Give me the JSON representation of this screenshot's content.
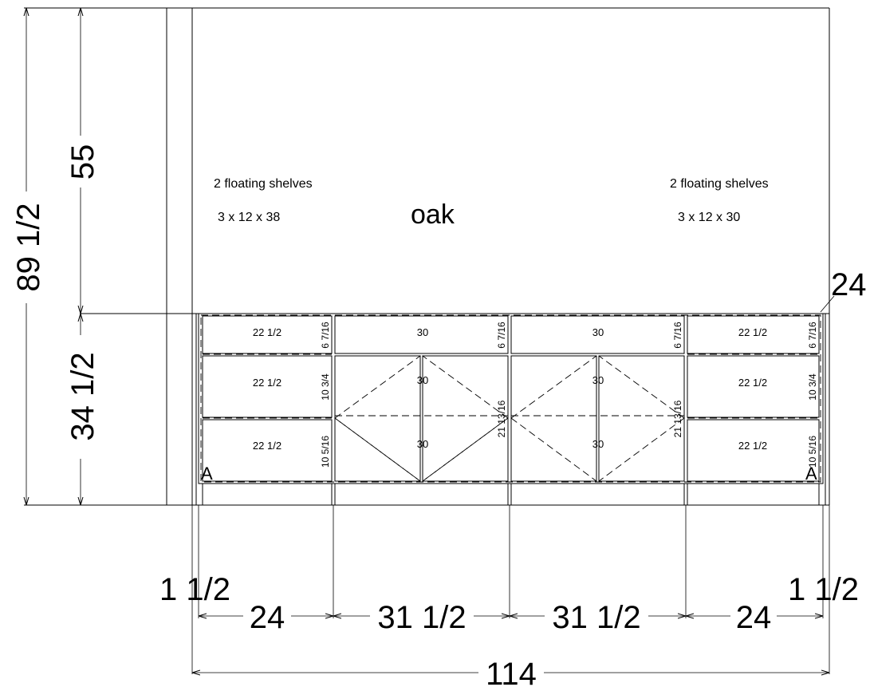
{
  "notes": {
    "left_shelves_title": "2 floating shelves",
    "left_shelves_size": "3 x 12 x 38",
    "material": "oak",
    "right_shelves_title": "2 floating shelves",
    "right_shelves_size": "3 x 12 x 30"
  },
  "dimensions": {
    "total_height": "89 1/2",
    "upper_height": "55",
    "cabinet_height": "34 1/2",
    "depth_callout": "24",
    "left_filler": "1 1/2",
    "right_filler": "1 1/2",
    "seg_1": "24",
    "seg_2": "31 1/2",
    "seg_3": "31 1/2",
    "seg_4": "24",
    "total_width": "114"
  },
  "cabinets": {
    "c1": {
      "drawer_1_width": "22 1/2",
      "drawer_1_height": "6 7/16",
      "drawer_2_width": "22 1/2",
      "drawer_2_height": "10 3/4",
      "drawer_3_width": "22 1/2",
      "drawer_3_height": "10 5/16",
      "section_mark": "A"
    },
    "c2": {
      "drawer_width": "30",
      "drawer_height": "6 7/16",
      "door_width_upper": "30",
      "door_width_lower": "30",
      "door_height": "21 13/16"
    },
    "c3": {
      "drawer_width": "30",
      "drawer_height": "6 7/16",
      "door_width_upper": "30",
      "door_width_lower": "30",
      "door_height": "21 13/16"
    },
    "c4": {
      "drawer_1_width": "22 1/2",
      "drawer_1_height": "6 7/16",
      "drawer_2_width": "22 1/2",
      "drawer_2_height": "10 3/4",
      "drawer_3_width": "22 1/2",
      "drawer_3_height": "10 5/16",
      "section_mark": "A"
    }
  }
}
